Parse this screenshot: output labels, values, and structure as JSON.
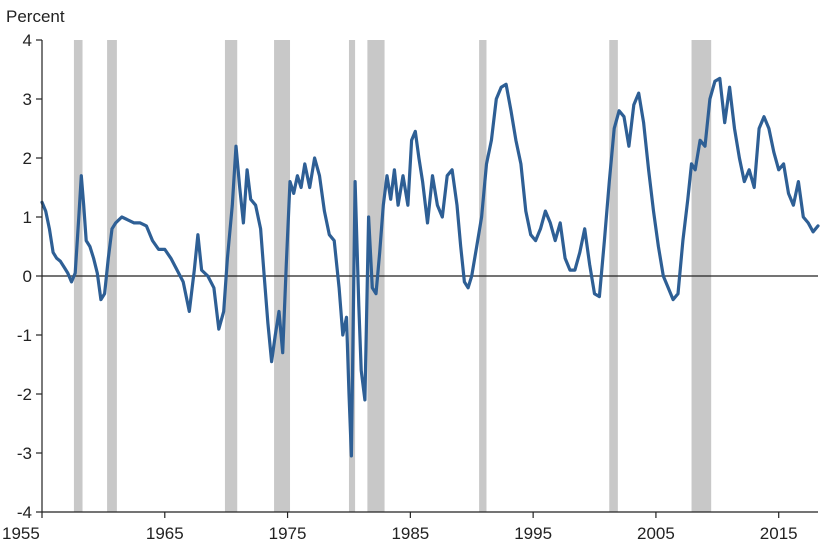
{
  "chart_data": {
    "type": "line",
    "title": "",
    "y_unit_label": "Percent",
    "xlabel": "",
    "ylabel": "",
    "xlim": [
      1955,
      2018.2
    ],
    "ylim": [
      -4,
      4
    ],
    "x_tick_labels": [
      "1955",
      "1965",
      "1975",
      "1985",
      "1995",
      "2005",
      "2015"
    ],
    "x_ticks": [
      1955,
      1965,
      1975,
      1985,
      1995,
      2005,
      2015
    ],
    "y_tick_labels": [
      "4",
      "3",
      "2",
      "1",
      "0",
      "-1",
      "-2",
      "-3",
      "-4"
    ],
    "y_ticks": [
      4,
      3,
      2,
      1,
      0,
      -1,
      -2,
      -3,
      -4
    ],
    "grid": false,
    "zero_line": true,
    "colors": {
      "line": "#2e5f95",
      "recession": "#c8c8c8",
      "axis": "#222222"
    },
    "recession_shading": [
      [
        1957.6,
        1958.3
      ],
      [
        1960.3,
        1961.1
      ],
      [
        1969.9,
        1970.9
      ],
      [
        1973.9,
        1975.2
      ],
      [
        1980.0,
        1980.5
      ],
      [
        1981.5,
        1982.9
      ],
      [
        1990.6,
        1991.2
      ],
      [
        2001.2,
        2001.9
      ],
      [
        2007.9,
        2009.5
      ]
    ],
    "series": [
      {
        "values": [
          [
            1955.0,
            1.25
          ],
          [
            1955.3,
            1.1
          ],
          [
            1955.6,
            0.8
          ],
          [
            1955.9,
            0.4
          ],
          [
            1956.2,
            0.3
          ],
          [
            1956.5,
            0.25
          ],
          [
            1956.8,
            0.15
          ],
          [
            1957.1,
            0.05
          ],
          [
            1957.4,
            -0.1
          ],
          [
            1957.7,
            0.05
          ],
          [
            1958.0,
            1.0
          ],
          [
            1958.2,
            1.7
          ],
          [
            1958.4,
            1.2
          ],
          [
            1958.6,
            0.6
          ],
          [
            1958.9,
            0.5
          ],
          [
            1959.2,
            0.3
          ],
          [
            1959.5,
            0.05
          ],
          [
            1959.8,
            -0.4
          ],
          [
            1960.1,
            -0.3
          ],
          [
            1960.4,
            0.3
          ],
          [
            1960.7,
            0.8
          ],
          [
            1961.0,
            0.9
          ],
          [
            1961.5,
            1.0
          ],
          [
            1962.0,
            0.95
          ],
          [
            1962.5,
            0.9
          ],
          [
            1963.0,
            0.9
          ],
          [
            1963.5,
            0.85
          ],
          [
            1964.0,
            0.6
          ],
          [
            1964.5,
            0.45
          ],
          [
            1965.0,
            0.45
          ],
          [
            1965.5,
            0.3
          ],
          [
            1966.0,
            0.1
          ],
          [
            1966.5,
            -0.1
          ],
          [
            1967.0,
            -0.6
          ],
          [
            1967.4,
            0.1
          ],
          [
            1967.7,
            0.7
          ],
          [
            1968.0,
            0.1
          ],
          [
            1968.5,
            0.0
          ],
          [
            1969.0,
            -0.2
          ],
          [
            1969.4,
            -0.9
          ],
          [
            1969.8,
            -0.6
          ],
          [
            1970.1,
            0.3
          ],
          [
            1970.5,
            1.2
          ],
          [
            1970.8,
            2.2
          ],
          [
            1971.1,
            1.5
          ],
          [
            1971.4,
            0.9
          ],
          [
            1971.7,
            1.8
          ],
          [
            1972.0,
            1.3
          ],
          [
            1972.4,
            1.2
          ],
          [
            1972.8,
            0.8
          ],
          [
            1973.1,
            0.0
          ],
          [
            1973.4,
            -0.8
          ],
          [
            1973.7,
            -1.45
          ],
          [
            1974.0,
            -1.0
          ],
          [
            1974.3,
            -0.6
          ],
          [
            1974.6,
            -1.3
          ],
          [
            1974.9,
            0.2
          ],
          [
            1975.2,
            1.6
          ],
          [
            1975.5,
            1.4
          ],
          [
            1975.8,
            1.7
          ],
          [
            1976.1,
            1.5
          ],
          [
            1976.4,
            1.9
          ],
          [
            1976.8,
            1.5
          ],
          [
            1977.2,
            2.0
          ],
          [
            1977.6,
            1.7
          ],
          [
            1978.0,
            1.1
          ],
          [
            1978.4,
            0.7
          ],
          [
            1978.8,
            0.6
          ],
          [
            1979.2,
            -0.2
          ],
          [
            1979.5,
            -1.0
          ],
          [
            1979.8,
            -0.7
          ],
          [
            1980.0,
            -2.0
          ],
          [
            1980.2,
            -3.05
          ],
          [
            1980.5,
            1.6
          ],
          [
            1980.8,
            -0.5
          ],
          [
            1981.0,
            -1.6
          ],
          [
            1981.3,
            -2.1
          ],
          [
            1981.6,
            1.0
          ],
          [
            1981.9,
            -0.2
          ],
          [
            1982.2,
            -0.3
          ],
          [
            1982.5,
            0.4
          ],
          [
            1982.8,
            1.2
          ],
          [
            1983.1,
            1.7
          ],
          [
            1983.4,
            1.3
          ],
          [
            1983.7,
            1.8
          ],
          [
            1984.0,
            1.2
          ],
          [
            1984.4,
            1.7
          ],
          [
            1984.8,
            1.2
          ],
          [
            1985.1,
            2.3
          ],
          [
            1985.4,
            2.45
          ],
          [
            1985.7,
            2.0
          ],
          [
            1986.0,
            1.6
          ],
          [
            1986.4,
            0.9
          ],
          [
            1986.8,
            1.7
          ],
          [
            1987.2,
            1.2
          ],
          [
            1987.6,
            1.0
          ],
          [
            1988.0,
            1.7
          ],
          [
            1988.4,
            1.8
          ],
          [
            1988.8,
            1.2
          ],
          [
            1989.1,
            0.5
          ],
          [
            1989.4,
            -0.1
          ],
          [
            1989.7,
            -0.2
          ],
          [
            1990.0,
            0.0
          ],
          [
            1990.4,
            0.5
          ],
          [
            1990.8,
            1.0
          ],
          [
            1991.2,
            1.9
          ],
          [
            1991.6,
            2.3
          ],
          [
            1992.0,
            3.0
          ],
          [
            1992.4,
            3.2
          ],
          [
            1992.8,
            3.25
          ],
          [
            1993.2,
            2.8
          ],
          [
            1993.6,
            2.3
          ],
          [
            1994.0,
            1.9
          ],
          [
            1994.4,
            1.1
          ],
          [
            1994.8,
            0.7
          ],
          [
            1995.2,
            0.6
          ],
          [
            1995.6,
            0.8
          ],
          [
            1996.0,
            1.1
          ],
          [
            1996.4,
            0.9
          ],
          [
            1996.8,
            0.6
          ],
          [
            1997.2,
            0.9
          ],
          [
            1997.6,
            0.3
          ],
          [
            1998.0,
            0.1
          ],
          [
            1998.4,
            0.1
          ],
          [
            1998.8,
            0.4
          ],
          [
            1999.2,
            0.8
          ],
          [
            1999.6,
            0.2
          ],
          [
            2000.0,
            -0.3
          ],
          [
            2000.4,
            -0.35
          ],
          [
            2000.8,
            0.6
          ],
          [
            2001.2,
            1.6
          ],
          [
            2001.6,
            2.5
          ],
          [
            2002.0,
            2.8
          ],
          [
            2002.4,
            2.7
          ],
          [
            2002.8,
            2.2
          ],
          [
            2003.2,
            2.9
          ],
          [
            2003.6,
            3.1
          ],
          [
            2004.0,
            2.6
          ],
          [
            2004.4,
            1.8
          ],
          [
            2004.8,
            1.1
          ],
          [
            2005.2,
            0.5
          ],
          [
            2005.6,
            0.0
          ],
          [
            2006.0,
            -0.2
          ],
          [
            2006.4,
            -0.4
          ],
          [
            2006.8,
            -0.3
          ],
          [
            2007.2,
            0.6
          ],
          [
            2007.6,
            1.3
          ],
          [
            2007.9,
            1.9
          ],
          [
            2008.2,
            1.8
          ],
          [
            2008.6,
            2.3
          ],
          [
            2009.0,
            2.2
          ],
          [
            2009.4,
            3.0
          ],
          [
            2009.8,
            3.3
          ],
          [
            2010.2,
            3.35
          ],
          [
            2010.6,
            2.6
          ],
          [
            2011.0,
            3.2
          ],
          [
            2011.4,
            2.5
          ],
          [
            2011.8,
            2.0
          ],
          [
            2012.2,
            1.6
          ],
          [
            2012.6,
            1.8
          ],
          [
            2013.0,
            1.5
          ],
          [
            2013.4,
            2.5
          ],
          [
            2013.8,
            2.7
          ],
          [
            2014.2,
            2.5
          ],
          [
            2014.6,
            2.1
          ],
          [
            2015.0,
            1.8
          ],
          [
            2015.4,
            1.9
          ],
          [
            2015.8,
            1.4
          ],
          [
            2016.2,
            1.2
          ],
          [
            2016.6,
            1.6
          ],
          [
            2017.0,
            1.0
          ],
          [
            2017.4,
            0.9
          ],
          [
            2017.8,
            0.75
          ],
          [
            2018.2,
            0.85
          ]
        ]
      }
    ]
  }
}
